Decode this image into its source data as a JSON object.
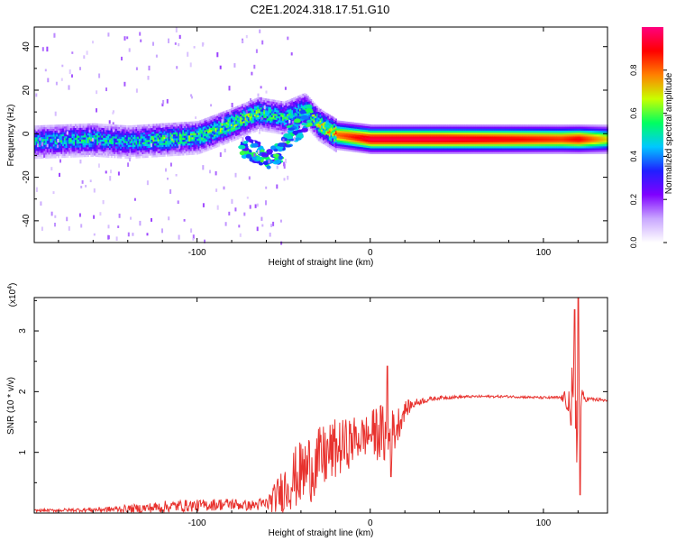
{
  "title": "C2E1.2024.318.17.51.G10",
  "chart_data": [
    {
      "type": "heatmap",
      "title": "C2E1.2024.318.17.51.G10",
      "xlabel": "Height of straight line (km)",
      "ylabel": "Frequency (Hz)",
      "xlim": [
        -194,
        137
      ],
      "ylim": [
        -50,
        49
      ],
      "xticks": [
        -100,
        0,
        100
      ],
      "yticks": [
        -40,
        -20,
        0,
        20,
        40
      ],
      "colorbar": {
        "label": "Normalized spectral amplitude",
        "range": [
          0,
          1
        ],
        "ticks": [
          "0.0",
          "0.2",
          "0.4",
          "0.6",
          "0.8"
        ],
        "colormap": [
          "#ffffff",
          "#c9a7ff",
          "#7f00ff",
          "#2020ff",
          "#00c8ff",
          "#00ff60",
          "#c8ff00",
          "#ff8000",
          "#ff0000",
          "#ff007f"
        ]
      },
      "ridge": {
        "x": [
          -194,
          -160,
          -140,
          -120,
          -100,
          -80,
          -65,
          -50,
          -38,
          -30,
          -20,
          0,
          40,
          80,
          110,
          120,
          137
        ],
        "freq_hz": [
          -3,
          -2,
          -3,
          -2,
          -1,
          5,
          10,
          8,
          12,
          5,
          0,
          -2,
          -2,
          -2,
          -2,
          -2,
          -2
        ],
        "amplitude": [
          0.5,
          0.55,
          0.5,
          0.6,
          0.6,
          0.65,
          0.6,
          0.55,
          0.55,
          0.7,
          0.8,
          0.95,
          0.95,
          0.9,
          0.85,
          0.9,
          0.7
        ]
      },
      "scatter_branch": {
        "x": [
          -75,
          -65,
          -58,
          -50,
          -45,
          -40,
          -35
        ],
        "freq_hz": [
          -5,
          -9,
          -13,
          -6,
          0,
          4,
          9
        ]
      }
    },
    {
      "type": "line",
      "xlabel": "Height of straight line (km)",
      "ylabel": "SNR (10 * v/v)",
      "y_multiplier": "(x10⁴)",
      "xlim": [
        -194,
        137
      ],
      "ylim": [
        0,
        3.55
      ],
      "xticks": [
        -100,
        0,
        100
      ],
      "yticks": [
        1,
        2,
        3
      ],
      "color": "#e8322e",
      "series": [
        {
          "x": [
            -194,
            -170,
            -150,
            -130,
            -120,
            -110,
            -100,
            -90,
            -80,
            -70,
            -60,
            -55,
            -50,
            -45,
            -40,
            -35,
            -30,
            -25,
            -20,
            -15,
            -10,
            -5,
            0,
            5,
            10,
            15,
            20,
            25,
            30,
            40,
            60,
            80,
            100,
            110,
            115,
            118,
            120,
            122,
            125,
            130,
            137
          ],
          "values": [
            0.04,
            0.05,
            0.06,
            0.08,
            0.1,
            0.12,
            0.12,
            0.14,
            0.15,
            0.12,
            0.15,
            0.25,
            0.4,
            0.55,
            0.65,
            0.75,
            0.85,
            0.95,
            1.05,
            1.1,
            1.2,
            1.25,
            1.3,
            1.35,
            1.2,
            1.4,
            1.7,
            1.8,
            1.85,
            1.9,
            1.92,
            1.92,
            1.9,
            1.9,
            1.85,
            1.6,
            1.9,
            1.9,
            1.88,
            1.87,
            1.85
          ],
          "noise": [
            0.02,
            0.03,
            0.05,
            0.08,
            0.1,
            0.1,
            0.1,
            0.1,
            0.1,
            0.08,
            0.12,
            0.25,
            0.4,
            0.5,
            0.55,
            0.6,
            0.55,
            0.55,
            0.5,
            0.45,
            0.4,
            0.35,
            0.35,
            0.5,
            0.5,
            0.35,
            0.15,
            0.08,
            0.05,
            0.03,
            0.02,
            0.02,
            0.02,
            0.03,
            0.25,
            1.2,
            1.0,
            0.15,
            0.04,
            0.03,
            0.03
          ],
          "spikes": [
            {
              "x": 10,
              "y": 2.42
            },
            {
              "x": 12,
              "y": 0.6
            },
            {
              "x": 118,
              "y": 3.35
            },
            {
              "x": 120,
              "y": 3.6
            },
            {
              "x": 121,
              "y": 0.3
            },
            {
              "x": 116,
              "y": 1.45
            }
          ]
        }
      ]
    }
  ]
}
